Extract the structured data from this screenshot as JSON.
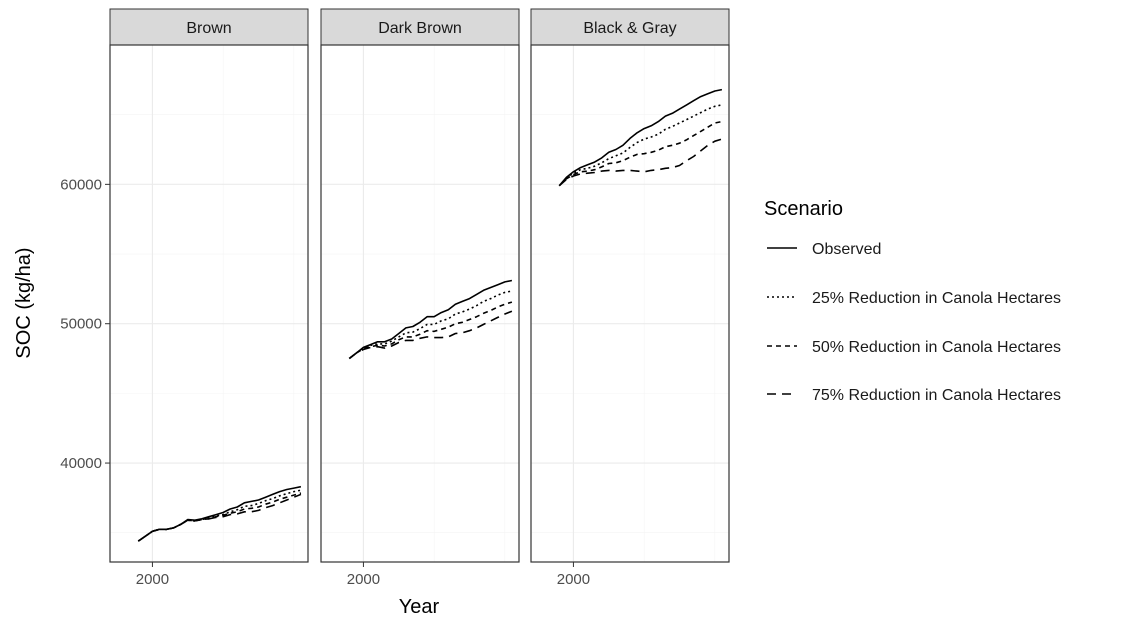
{
  "chart_data": {
    "type": "line",
    "facet_by": "soil zone",
    "panels": [
      "Brown",
      "Dark Brown",
      "Black & Gray"
    ],
    "xlabel": "Year",
    "ylabel": "SOC (kg/ha)",
    "x_ticks": [
      2000
    ],
    "y_ticks": [
      40000,
      50000,
      60000
    ],
    "xlim": [
      1994,
      2022
    ],
    "ylim": [
      32900,
      70000
    ],
    "grid": true,
    "legend": {
      "title": "Scenario",
      "position": "right",
      "entries": [
        {
          "label": "Observed",
          "dash": "solid"
        },
        {
          "label": "25% Reduction in Canola Hectares",
          "dash": "dotted"
        },
        {
          "label": "50% Reduction in Canola Hectares",
          "dash": "short-dash"
        },
        {
          "label": "75% Reduction in Canola Hectares",
          "dash": "long-dash"
        }
      ]
    },
    "x": [
      1998,
      1999,
      2000,
      2001,
      2002,
      2003,
      2004,
      2005,
      2006,
      2007,
      2008,
      2009,
      2010,
      2011,
      2012,
      2013,
      2014,
      2015,
      2016,
      2017,
      2018,
      2019,
      2020,
      2021
    ],
    "series": [
      {
        "panel": "Brown",
        "name": "Observed",
        "values": [
          34400,
          34750,
          35100,
          35250,
          35250,
          35350,
          35600,
          35950,
          35900,
          36000,
          36150,
          36300,
          36450,
          36700,
          36850,
          37150,
          37250,
          37350,
          37550,
          37750,
          37950,
          38100,
          38200,
          38300
        ]
      },
      {
        "panel": "Brown",
        "name": "25% Reduction in Canola Hectares",
        "values": [
          34400,
          34750,
          35100,
          35250,
          35250,
          35350,
          35600,
          35900,
          35850,
          35950,
          36050,
          36200,
          36300,
          36500,
          36650,
          36900,
          36950,
          37100,
          37300,
          37450,
          37650,
          37800,
          37950,
          38050
        ]
      },
      {
        "panel": "Brown",
        "name": "50% Reduction in Canola Hectares",
        "values": [
          34400,
          34750,
          35100,
          35250,
          35250,
          35350,
          35600,
          35900,
          35850,
          35950,
          36000,
          36150,
          36250,
          36400,
          36500,
          36700,
          36750,
          36850,
          37050,
          37200,
          37400,
          37550,
          37700,
          37850
        ]
      },
      {
        "panel": "Brown",
        "name": "75% Reduction in Canola Hectares",
        "values": [
          34400,
          34750,
          35100,
          35250,
          35250,
          35350,
          35600,
          35900,
          35850,
          35950,
          36000,
          36100,
          36150,
          36300,
          36350,
          36500,
          36500,
          36600,
          36800,
          36950,
          37150,
          37350,
          37550,
          37750
        ]
      },
      {
        "panel": "Dark Brown",
        "name": "Observed",
        "values": [
          47500,
          47900,
          48300,
          48500,
          48700,
          48700,
          48900,
          49300,
          49700,
          49800,
          50100,
          50500,
          50500,
          50800,
          51000,
          51400,
          51600,
          51800,
          52100,
          52400,
          52600,
          52800,
          53000,
          53100
        ]
      },
      {
        "panel": "Dark Brown",
        "name": "25% Reduction in Canola Hectares",
        "values": [
          47500,
          47900,
          48250,
          48450,
          48550,
          48550,
          48750,
          49050,
          49350,
          49400,
          49650,
          49950,
          49950,
          50200,
          50350,
          50700,
          50850,
          51050,
          51300,
          51600,
          51800,
          52050,
          52250,
          52350
        ]
      },
      {
        "panel": "Dark Brown",
        "name": "50% Reduction in Canola Hectares",
        "values": [
          47500,
          47900,
          48200,
          48350,
          48450,
          48400,
          48550,
          48850,
          49050,
          49050,
          49250,
          49500,
          49450,
          49600,
          49750,
          50000,
          50100,
          50300,
          50500,
          50750,
          50950,
          51200,
          51400,
          51550
        ]
      },
      {
        "panel": "Dark Brown",
        "name": "75% Reduction in Canola Hectares",
        "values": [
          47500,
          47900,
          48150,
          48300,
          48350,
          48250,
          48400,
          48650,
          48800,
          48800,
          48950,
          49050,
          49000,
          49000,
          49050,
          49300,
          49350,
          49500,
          49700,
          49950,
          50200,
          50450,
          50700,
          50900
        ]
      },
      {
        "panel": "Black & Gray",
        "name": "Observed",
        "values": [
          59900,
          60500,
          60900,
          61200,
          61400,
          61600,
          61900,
          62300,
          62500,
          62800,
          63300,
          63700,
          64000,
          64200,
          64500,
          64900,
          65100,
          65400,
          65700,
          66000,
          66300,
          66500,
          66700,
          66800
        ]
      },
      {
        "panel": "Black & Gray",
        "name": "25% Reduction in Canola Hectares",
        "values": [
          59900,
          60450,
          60800,
          61050,
          61150,
          61300,
          61550,
          61850,
          62050,
          62250,
          62650,
          63000,
          63250,
          63400,
          63600,
          63950,
          64150,
          64400,
          64650,
          64900,
          65150,
          65400,
          65600,
          65700
        ]
      },
      {
        "panel": "Black & Gray",
        "name": "50% Reduction in Canola Hectares",
        "values": [
          59900,
          60400,
          60700,
          60900,
          60950,
          61050,
          61250,
          61500,
          61550,
          61700,
          61950,
          62150,
          62200,
          62300,
          62450,
          62700,
          62800,
          62950,
          63200,
          63500,
          63800,
          64100,
          64400,
          64500
        ]
      },
      {
        "panel": "Black & Gray",
        "name": "75% Reduction in Canola Hectares",
        "values": [
          59900,
          60350,
          60600,
          60750,
          60800,
          60850,
          60950,
          61000,
          60950,
          61000,
          61000,
          60950,
          60900,
          61000,
          61050,
          61150,
          61200,
          61350,
          61700,
          62000,
          62400,
          62800,
          63100,
          63250
        ]
      }
    ]
  }
}
